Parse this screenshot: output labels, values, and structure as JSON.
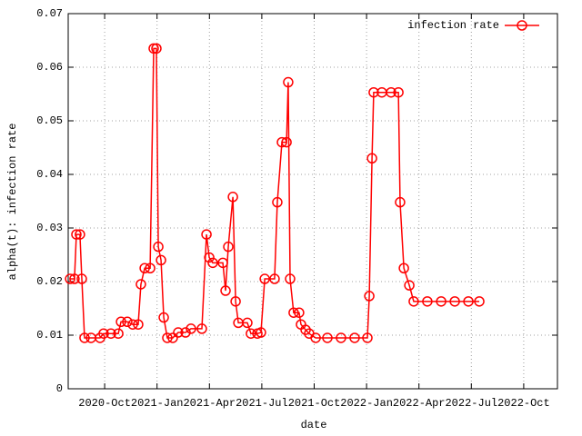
{
  "chart_data": {
    "type": "line",
    "xlabel": "date",
    "ylabel": "alpha(t): infection rate",
    "x": [
      2020.585,
      2020.606,
      2020.615,
      2020.632,
      2020.641,
      2020.654,
      2020.685,
      2020.728,
      2020.745,
      2020.78,
      2020.815,
      2020.828,
      2020.858,
      2020.884,
      2020.91,
      2020.923,
      2020.941,
      2020.967,
      2020.984,
      2020.997,
      2021.006,
      2021.019,
      2021.032,
      2021.049,
      2021.075,
      2021.101,
      2021.136,
      2021.162,
      2021.214,
      2021.236,
      2021.249,
      2021.266,
      2021.314,
      2021.327,
      2021.34,
      2021.362,
      2021.375,
      2021.388,
      2021.431,
      2021.448,
      2021.479,
      2021.496,
      2021.514,
      2021.561,
      2021.574,
      2021.596,
      2021.618,
      2021.626,
      2021.635,
      2021.652,
      2021.678,
      2021.687,
      2021.709,
      2021.726,
      2021.757,
      2021.813,
      2021.878,
      2021.943,
      2022.004,
      2022.013,
      2022.026,
      2022.034,
      2022.073,
      2022.117,
      2022.152,
      2022.16,
      2022.178,
      2022.204,
      2022.225,
      2022.29,
      2022.356,
      2022.421,
      2022.486,
      2022.538
    ],
    "series": [
      {
        "name": "infection rate",
        "color": "#ff0000",
        "values": [
          0.0205,
          0.0205,
          0.0288,
          0.0288,
          0.0205,
          0.0095,
          0.0095,
          0.0095,
          0.0103,
          0.0103,
          0.0103,
          0.0125,
          0.0125,
          0.012,
          0.012,
          0.0195,
          0.0225,
          0.0225,
          0.0635,
          0.0635,
          0.0265,
          0.024,
          0.0133,
          0.0095,
          0.0095,
          0.0105,
          0.0105,
          0.0112,
          0.0112,
          0.0288,
          0.0245,
          0.0235,
          0.0235,
          0.0183,
          0.0265,
          0.0358,
          0.0163,
          0.0123,
          0.0123,
          0.0103,
          0.0103,
          0.0105,
          0.0205,
          0.0205,
          0.0348,
          0.046,
          0.046,
          0.0572,
          0.0205,
          0.0142,
          0.0142,
          0.012,
          0.011,
          0.0103,
          0.0095,
          0.0095,
          0.0095,
          0.0095,
          0.0095,
          0.0173,
          0.043,
          0.0553,
          0.0553,
          0.0553,
          0.0553,
          0.0348,
          0.0225,
          0.0193,
          0.0163,
          0.0163,
          0.0163,
          0.0163,
          0.0163,
          0.0163
        ]
      }
    ],
    "xlim": [
      2020.576,
      2022.911
    ],
    "xticks": [
      {
        "value": 2020.75,
        "label": "2020-Oct"
      },
      {
        "value": 2021.0,
        "label": "2021-Jan"
      },
      {
        "value": 2021.25,
        "label": "2021-Apr"
      },
      {
        "value": 2021.5,
        "label": "2021-Jul"
      },
      {
        "value": 2021.75,
        "label": "2021-Oct"
      },
      {
        "value": 2022.0,
        "label": "2022-Jan"
      },
      {
        "value": 2022.25,
        "label": "2022-Apr"
      },
      {
        "value": 2022.5,
        "label": "2022-Jul"
      },
      {
        "value": 2022.75,
        "label": "2022-Oct"
      }
    ],
    "ylim": [
      0,
      0.07
    ],
    "yticks": [
      0,
      0.01,
      0.02,
      0.03,
      0.04,
      0.05,
      0.06,
      0.07
    ],
    "grid": true,
    "legend": "top-right"
  }
}
